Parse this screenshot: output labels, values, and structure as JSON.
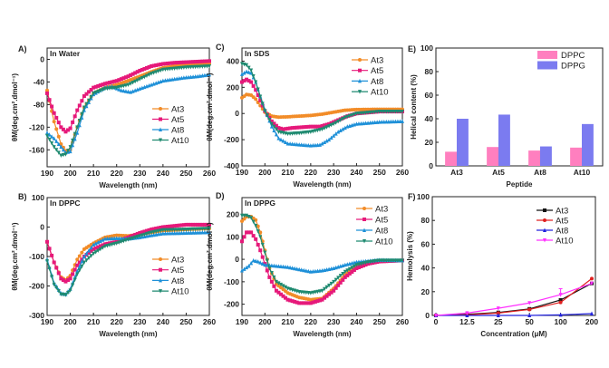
{
  "chart_data": [
    {
      "id": "A",
      "panel_label": "A)",
      "annotation": "In Water",
      "type": "line",
      "xlabel": "Wavelength (nm)",
      "ylabel": "θM(deg.cm².dmol⁻¹)",
      "xlim": [
        190,
        260
      ],
      "ylim": [
        -190,
        20
      ],
      "xticks": [
        190,
        200,
        210,
        220,
        230,
        240,
        250,
        260
      ],
      "yticks": [
        -160,
        -120,
        -80,
        -40,
        0
      ],
      "series": [
        {
          "name": "At3",
          "color": "#f28c28",
          "marker": "circle",
          "x": [
            190,
            193,
            196,
            198,
            200,
            203,
            206,
            210,
            215,
            220,
            225,
            230,
            235,
            240,
            245,
            250,
            255,
            260
          ],
          "y": [
            -55,
            -110,
            -150,
            -162,
            -160,
            -120,
            -85,
            -60,
            -50,
            -45,
            -38,
            -30,
            -22,
            -15,
            -12,
            -10,
            -9,
            -8
          ]
        },
        {
          "name": "At5",
          "color": "#e6197a",
          "marker": "square",
          "x": [
            190,
            193,
            196,
            198,
            200,
            203,
            206,
            210,
            215,
            220,
            225,
            230,
            235,
            240,
            245,
            250,
            255,
            260
          ],
          "y": [
            -60,
            -95,
            -120,
            -128,
            -122,
            -90,
            -65,
            -50,
            -43,
            -38,
            -30,
            -20,
            -12,
            -8,
            -6,
            -5,
            -4,
            -3
          ]
        },
        {
          "name": "At8",
          "color": "#1e90d8",
          "marker": "triangle",
          "x": [
            190,
            193,
            196,
            198,
            200,
            203,
            206,
            210,
            215,
            218,
            222,
            226,
            230,
            235,
            240,
            245,
            250,
            255,
            260
          ],
          "y": [
            -130,
            -140,
            -155,
            -165,
            -163,
            -130,
            -90,
            -62,
            -50,
            -48,
            -55,
            -58,
            -52,
            -45,
            -38,
            -35,
            -32,
            -30,
            -27
          ]
        },
        {
          "name": "At10",
          "color": "#1f8a70",
          "marker": "tri-down",
          "x": [
            190,
            193,
            196,
            198,
            200,
            203,
            206,
            210,
            215,
            220,
            225,
            230,
            235,
            240,
            245,
            250,
            255,
            260
          ],
          "y": [
            -135,
            -155,
            -170,
            -168,
            -155,
            -120,
            -85,
            -60,
            -52,
            -50,
            -45,
            -35,
            -25,
            -18,
            -16,
            -14,
            -13,
            -12
          ]
        }
      ]
    },
    {
      "id": "B",
      "panel_label": "B)",
      "annotation": "In DPPC",
      "type": "line",
      "xlabel": "Wavelength (nm)",
      "ylabel": "θM(deg.cm².dmol⁻¹)",
      "xlim": [
        190,
        260
      ],
      "ylim": [
        -300,
        100
      ],
      "xticks": [
        190,
        200,
        210,
        220,
        230,
        240,
        250,
        260
      ],
      "yticks": [
        -300,
        -200,
        -100,
        0,
        100
      ],
      "series": [
        {
          "name": "At3",
          "color": "#f28c28",
          "marker": "circle",
          "x": [
            190,
            193,
            196,
            198,
            200,
            203,
            206,
            210,
            215,
            220,
            225,
            230,
            235,
            240,
            250,
            260
          ],
          "y": [
            -50,
            -120,
            -170,
            -180,
            -165,
            -110,
            -75,
            -55,
            -35,
            -28,
            -30,
            -25,
            -18,
            -12,
            -8,
            -5
          ]
        },
        {
          "name": "At5",
          "color": "#e6197a",
          "marker": "square",
          "x": [
            190,
            193,
            196,
            198,
            200,
            203,
            206,
            210,
            215,
            220,
            225,
            230,
            235,
            240,
            250,
            260
          ],
          "y": [
            -50,
            -120,
            -175,
            -185,
            -175,
            -130,
            -100,
            -75,
            -58,
            -50,
            -35,
            -20,
            -8,
            0,
            8,
            8
          ]
        },
        {
          "name": "At8",
          "color": "#1e90d8",
          "marker": "triangle",
          "x": [
            190,
            193,
            196,
            198,
            200,
            203,
            206,
            210,
            215,
            220,
            225,
            230,
            235,
            240,
            250,
            260
          ],
          "y": [
            -110,
            -190,
            -225,
            -228,
            -210,
            -150,
            -100,
            -60,
            -40,
            -38,
            -40,
            -35,
            -28,
            -22,
            -20,
            -18
          ]
        },
        {
          "name": "At10",
          "color": "#1f8a70",
          "marker": "tri-down",
          "x": [
            190,
            193,
            196,
            198,
            200,
            203,
            206,
            210,
            215,
            220,
            225,
            230,
            235,
            240,
            250,
            260
          ],
          "y": [
            -115,
            -195,
            -228,
            -230,
            -215,
            -160,
            -120,
            -90,
            -65,
            -55,
            -42,
            -30,
            -18,
            -10,
            -8,
            -5
          ]
        }
      ]
    },
    {
      "id": "C",
      "panel_label": "C)",
      "annotation": "In SDS",
      "type": "line",
      "xlabel": "Wavelength (nm)",
      "ylabel": "θM(deg.cm².dmol⁻¹)",
      "xlim": [
        190,
        260
      ],
      "ylim": [
        -400,
        500
      ],
      "xticks": [
        190,
        200,
        210,
        220,
        230,
        240,
        250,
        260
      ],
      "yticks": [
        -400,
        -200,
        0,
        200,
        400
      ],
      "series": [
        {
          "name": "At3",
          "color": "#f28c28",
          "marker": "circle",
          "x": [
            190,
            192,
            194,
            196,
            198,
            200,
            203,
            206,
            210,
            215,
            220,
            225,
            230,
            235,
            240,
            250,
            260
          ],
          "y": [
            120,
            145,
            140,
            110,
            60,
            10,
            -20,
            -28,
            -25,
            -20,
            -15,
            -5,
            10,
            25,
            30,
            32,
            32
          ]
        },
        {
          "name": "At5",
          "color": "#e6197a",
          "marker": "square",
          "x": [
            190,
            192,
            194,
            196,
            198,
            200,
            203,
            206,
            208,
            212,
            216,
            220,
            224,
            228,
            232,
            236,
            240,
            250,
            260
          ],
          "y": [
            240,
            260,
            240,
            180,
            100,
            20,
            -60,
            -110,
            -120,
            -110,
            -105,
            -100,
            -100,
            -80,
            -50,
            -20,
            0,
            15,
            15
          ]
        },
        {
          "name": "At8",
          "color": "#1e90d8",
          "marker": "triangle",
          "x": [
            190,
            192,
            194,
            196,
            198,
            200,
            203,
            206,
            210,
            215,
            220,
            224,
            228,
            232,
            236,
            240,
            250,
            260
          ],
          "y": [
            300,
            320,
            310,
            240,
            130,
            30,
            -100,
            -190,
            -230,
            -238,
            -245,
            -240,
            -200,
            -140,
            -100,
            -80,
            -65,
            -60
          ]
        },
        {
          "name": "At10",
          "color": "#1f8a70",
          "marker": "tri-down",
          "x": [
            190,
            192,
            194,
            196,
            198,
            200,
            203,
            206,
            210,
            215,
            220,
            225,
            230,
            235,
            240,
            250,
            260
          ],
          "y": [
            380,
            370,
            330,
            240,
            130,
            20,
            -80,
            -140,
            -155,
            -150,
            -140,
            -120,
            -80,
            -30,
            0,
            15,
            15
          ]
        }
      ]
    },
    {
      "id": "D",
      "panel_label": "D)",
      "annotation": "In DPPG",
      "type": "line",
      "xlabel": "Wavelength (nm)",
      "ylabel": "θM(deg.cm².dmol⁻¹)",
      "xlim": [
        190,
        260
      ],
      "ylim": [
        -250,
        275
      ],
      "xticks": [
        190,
        200,
        210,
        220,
        230,
        240,
        250,
        260
      ],
      "yticks": [
        -200,
        -100,
        0,
        100,
        200
      ],
      "series": [
        {
          "name": "At3",
          "color": "#f28c28",
          "marker": "circle",
          "x": [
            190,
            192,
            194,
            196,
            198,
            200,
            202,
            205,
            210,
            215,
            220,
            225,
            230,
            235,
            240,
            245,
            250,
            260
          ],
          "y": [
            170,
            190,
            190,
            175,
            120,
            40,
            -40,
            -110,
            -150,
            -170,
            -180,
            -175,
            -130,
            -70,
            -30,
            -15,
            -8,
            -5
          ]
        },
        {
          "name": "At5",
          "color": "#e6197a",
          "marker": "square",
          "x": [
            190,
            192,
            194,
            196,
            198,
            200,
            202,
            205,
            210,
            215,
            220,
            225,
            230,
            235,
            240,
            245,
            250,
            260
          ],
          "y": [
            80,
            120,
            120,
            90,
            40,
            -20,
            -80,
            -140,
            -180,
            -195,
            -195,
            -180,
            -140,
            -80,
            -40,
            -20,
            -10,
            -5
          ]
        },
        {
          "name": "At8",
          "color": "#1e90d8",
          "marker": "triangle",
          "x": [
            190,
            193,
            195,
            197,
            200,
            205,
            210,
            215,
            220,
            225,
            230,
            235,
            240,
            250,
            260
          ],
          "y": [
            -50,
            -30,
            -5,
            -10,
            -25,
            -30,
            -35,
            -45,
            -55,
            -50,
            -40,
            -25,
            -12,
            -3,
            -5
          ]
        },
        {
          "name": "At10",
          "color": "#1f8a70",
          "marker": "tri-down",
          "x": [
            190,
            192,
            194,
            196,
            198,
            200,
            202,
            205,
            210,
            215,
            220,
            225,
            230,
            235,
            240,
            245,
            250,
            260
          ],
          "y": [
            195,
            195,
            185,
            150,
            100,
            30,
            -40,
            -100,
            -130,
            -145,
            -150,
            -140,
            -100,
            -55,
            -25,
            -12,
            -5,
            -5
          ]
        }
      ]
    },
    {
      "id": "E",
      "panel_label": "E)",
      "type": "bar",
      "xlabel": "Peptide",
      "ylabel": "Helical content (%)",
      "ylim": [
        0,
        100
      ],
      "yticks": [
        0,
        20,
        40,
        60,
        80,
        100
      ],
      "categories": [
        "At3",
        "At5",
        "At8",
        "At10"
      ],
      "series": [
        {
          "name": "DPPC",
          "color": "#ff7fbf",
          "values": [
            12,
            16,
            13,
            15.5
          ]
        },
        {
          "name": "DPPG",
          "color": "#7b7bf0",
          "values": [
            40,
            43.5,
            16.5,
            35.5
          ]
        }
      ]
    },
    {
      "id": "F",
      "panel_label": "F)",
      "type": "line",
      "xlabel": "Concentration (μM)",
      "ylabel": "Hemolysis (%)",
      "ylim": [
        0,
        100
      ],
      "yticks": [
        0,
        20,
        40,
        60,
        80,
        100
      ],
      "categories": [
        "0",
        "12.5",
        "25",
        "50",
        "100",
        "200"
      ],
      "series": [
        {
          "name": "At3",
          "color": "#111111",
          "marker": "square",
          "values": [
            0,
            1,
            2.5,
            5.5,
            13,
            27
          ]
        },
        {
          "name": "At5",
          "color": "#e02020",
          "marker": "circle",
          "values": [
            0,
            0.5,
            2,
            5,
            11,
            31
          ]
        },
        {
          "name": "At8",
          "color": "#2222dd",
          "marker": "triangle",
          "values": [
            0,
            0,
            0,
            0,
            0.5,
            1.5
          ]
        },
        {
          "name": "At10",
          "color": "#ff30ff",
          "marker": "tri-down",
          "values": [
            0,
            2,
            6,
            10.5,
            17.5,
            27
          ],
          "error": [
            0,
            0,
            0,
            0,
            5,
            0
          ]
        }
      ]
    }
  ]
}
